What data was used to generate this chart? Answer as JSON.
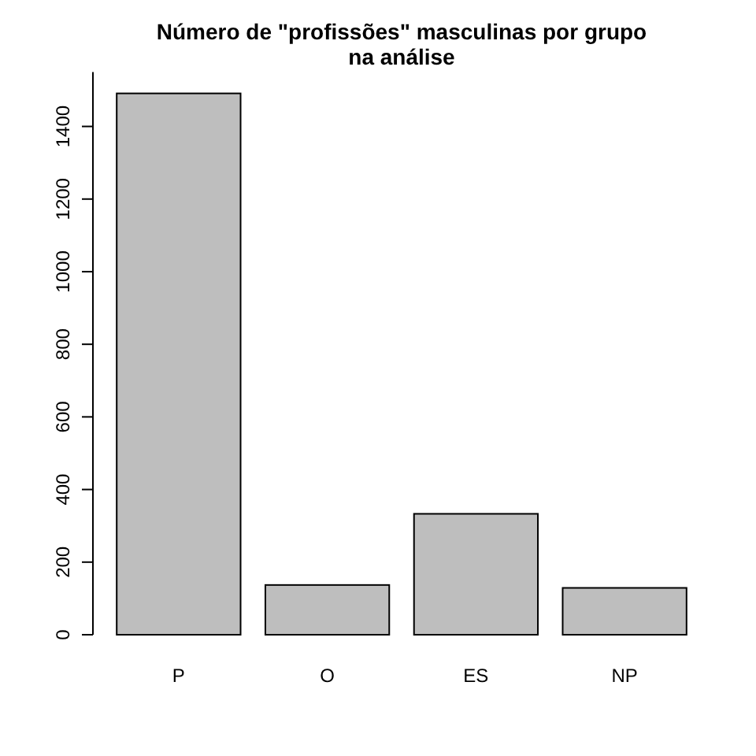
{
  "chart_data": {
    "type": "bar",
    "title": "Número de \"profissões\" masculinas por grupo\nna análise",
    "categories": [
      "P",
      "O",
      "ES",
      "NP"
    ],
    "values": [
      1491,
      137,
      333,
      129
    ],
    "color": "#bebebe",
    "ylim": [
      0,
      1550
    ],
    "yticks": [
      0,
      200,
      400,
      600,
      800,
      1000,
      1200,
      1400
    ]
  }
}
